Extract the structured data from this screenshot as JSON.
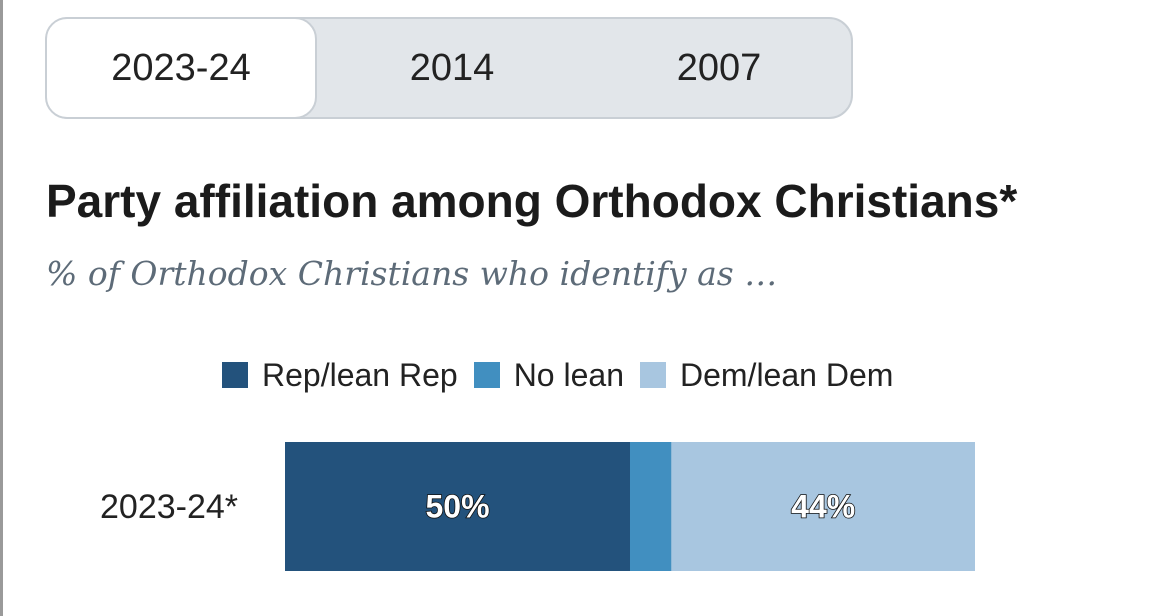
{
  "tabs": [
    {
      "label": "2023-24",
      "active": true
    },
    {
      "label": "2014",
      "active": false
    },
    {
      "label": "2007",
      "active": false
    }
  ],
  "chart_data": {
    "type": "bar",
    "orientation": "horizontal",
    "stacked": true,
    "title": "Party affiliation among Orthodox Christians*",
    "subtitle": "% of Orthodox Christians who identify as …",
    "categories": [
      "2023-24*"
    ],
    "series": [
      {
        "name": "Rep/lean Rep",
        "values": [
          50
        ],
        "color": "#23527c",
        "label": "50%"
      },
      {
        "name": "No lean",
        "values": [
          6
        ],
        "color": "#418fc0",
        "label": ""
      },
      {
        "name": "Dem/lean Dem",
        "values": [
          44
        ],
        "color": "#a8c6e0",
        "label": "44%"
      }
    ],
    "xlim": [
      0,
      100
    ],
    "grid": false,
    "legend_position": "top"
  }
}
